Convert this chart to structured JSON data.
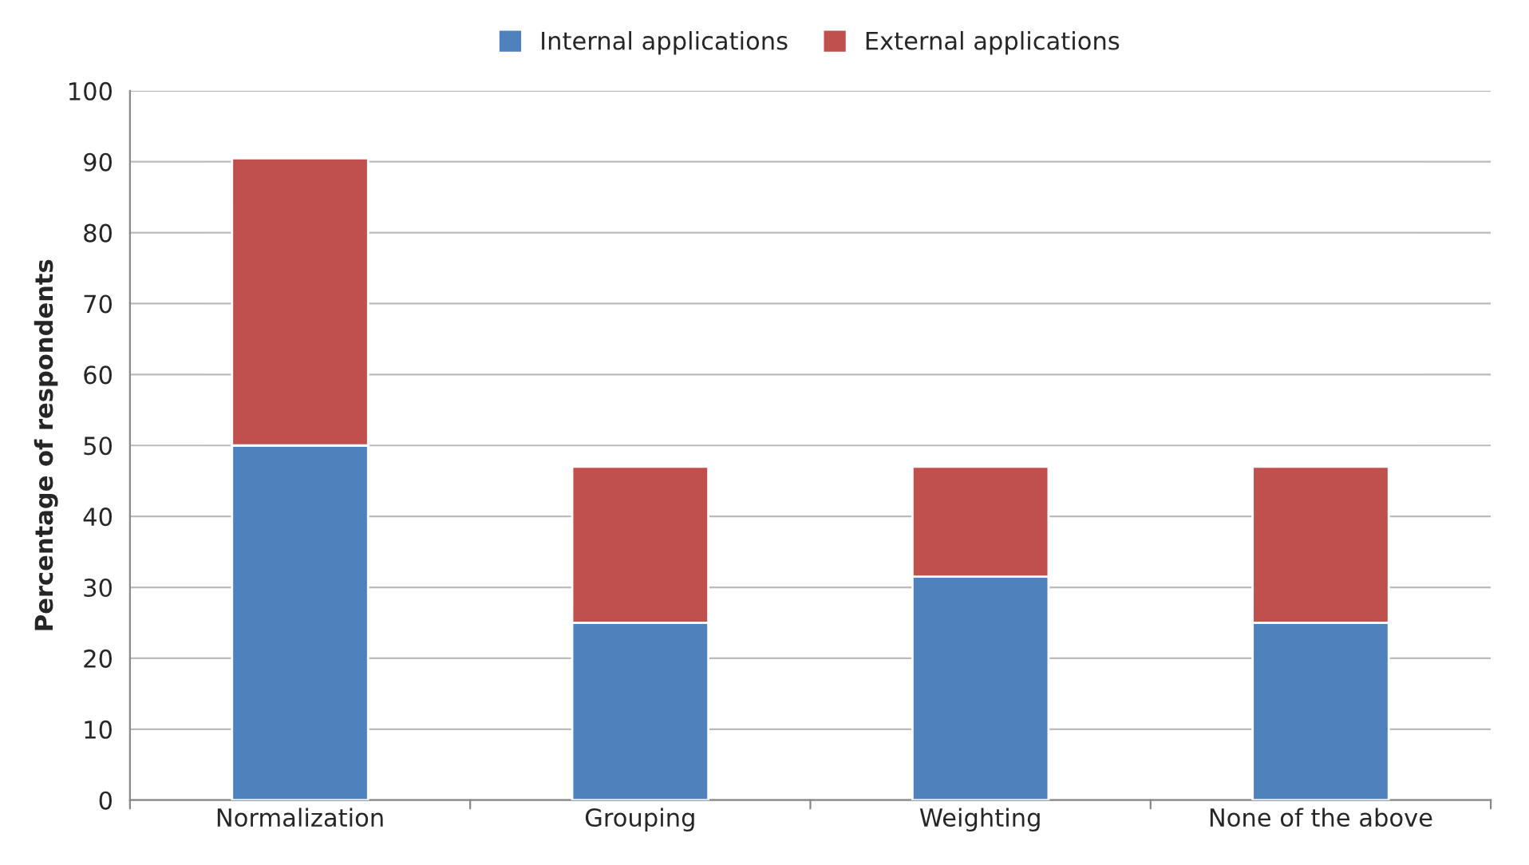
{
  "chart_data": {
    "type": "bar",
    "stacked": true,
    "categories": [
      "Normalization",
      "Grouping",
      "Weighting",
      "None of the above"
    ],
    "series": [
      {
        "name": "Internal applications",
        "color": "#4f81bd",
        "values": [
          50,
          25,
          31.5,
          25
        ]
      },
      {
        "name": "External applications",
        "color": "#c0504d",
        "values": [
          40.5,
          22,
          15.5,
          22
        ]
      }
    ],
    "ylabel": "Percentage of respondents",
    "ylim": [
      0,
      100
    ],
    "yticks": [
      0,
      10,
      20,
      30,
      40,
      50,
      60,
      70,
      80,
      90,
      100
    ],
    "grid": "y",
    "legend": "top"
  }
}
